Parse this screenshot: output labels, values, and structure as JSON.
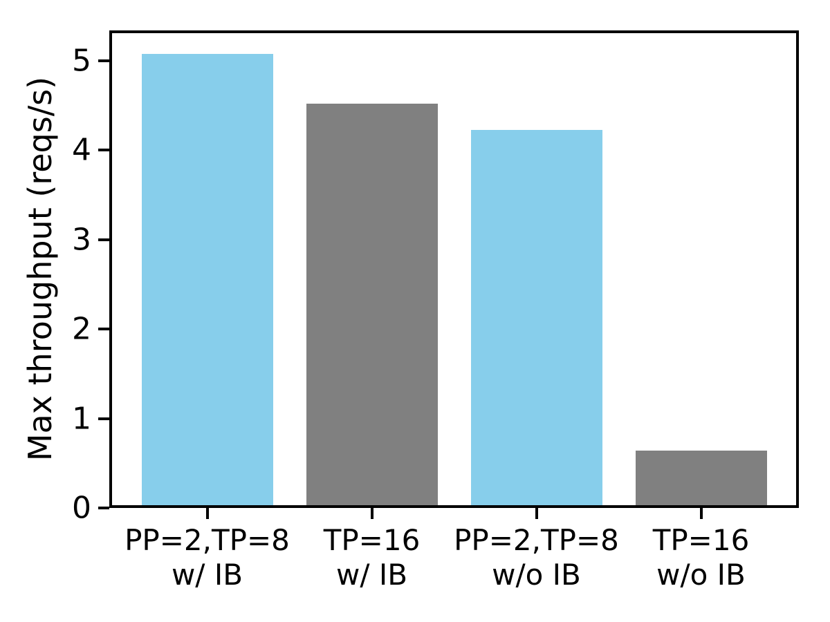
{
  "figure": {
    "background_color": "#ffffff",
    "axes_color": "#000000",
    "text_color": "#000000"
  },
  "chart_data": {
    "type": "bar",
    "title": "",
    "xlabel": "",
    "ylabel": "Max throughput (reqs/s)",
    "categories": [
      [
        "PP=2,TP=8",
        "w/ IB"
      ],
      [
        "TP=16",
        "w/ IB"
      ],
      [
        "PP=2,TP=8",
        "w/o IB"
      ],
      [
        "TP=16",
        "w/o IB"
      ]
    ],
    "values": [
      5.08,
      4.52,
      4.23,
      0.64
    ],
    "bar_colors": [
      "#87ceeb",
      "#808080",
      "#87ceeb",
      "#808080"
    ],
    "ylim": [
      0,
      5.34
    ],
    "yticks": [
      "0",
      "1",
      "2",
      "3",
      "4",
      "5"
    ],
    "grid": false,
    "legend_position": "none"
  }
}
